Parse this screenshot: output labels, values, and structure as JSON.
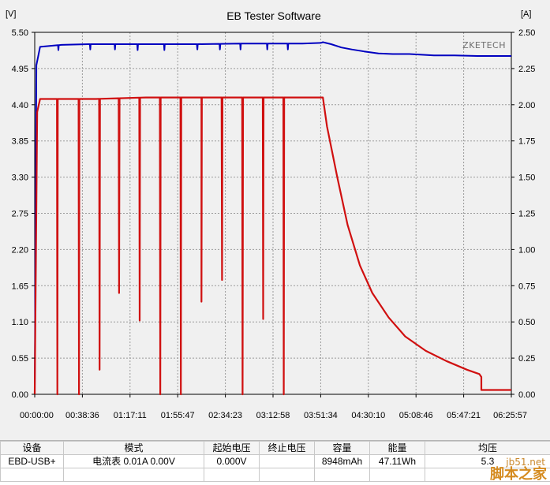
{
  "title": "EB Tester Software",
  "watermark": "ZKETECH",
  "chart_data": {
    "type": "line",
    "title": "EB Tester Software",
    "left_unit": "[V]",
    "right_unit": "[A]",
    "left_ylim": [
      0,
      5.5
    ],
    "right_ylim": [
      0,
      2.5
    ],
    "left_ticks": [
      "0.00",
      "0.55",
      "1.10",
      "1.65",
      "2.20",
      "2.75",
      "3.30",
      "3.85",
      "4.40",
      "4.95",
      "5.50"
    ],
    "right_ticks": [
      "0.00",
      "0.25",
      "0.50",
      "0.75",
      "1.00",
      "1.25",
      "1.50",
      "1.75",
      "2.00",
      "2.25",
      "2.50"
    ],
    "x_ticks": [
      "00:00:00",
      "00:38:36",
      "01:17:11",
      "01:55:47",
      "02:34:23",
      "03:12:58",
      "03:51:34",
      "04:30:10",
      "05:08:46",
      "05:47:21",
      "06:25:57"
    ],
    "x_total_seconds": 23157,
    "grid": true,
    "series": [
      {
        "axis": "left",
        "color": "#0000c0",
        "points": [
          [
            0,
            0
          ],
          [
            80,
            5.0
          ],
          [
            260,
            5.28
          ],
          [
            1300,
            5.31
          ],
          [
            2600,
            5.32
          ],
          [
            5200,
            5.32
          ],
          [
            7800,
            5.32
          ],
          [
            10400,
            5.33
          ],
          [
            13000,
            5.33
          ],
          [
            13900,
            5.34
          ],
          [
            14000,
            5.35
          ],
          [
            14400,
            5.32
          ],
          [
            14900,
            5.27
          ],
          [
            15400,
            5.24
          ],
          [
            16000,
            5.21
          ],
          [
            16700,
            5.18
          ],
          [
            17400,
            5.17
          ],
          [
            18200,
            5.17
          ],
          [
            18800,
            5.16
          ],
          [
            19400,
            5.15
          ],
          [
            20400,
            5.15
          ],
          [
            21500,
            5.14
          ],
          [
            23157,
            5.14
          ]
        ],
        "dips": [
          [
            1150,
            5.23
          ],
          [
            2700,
            5.24
          ],
          [
            3900,
            5.24
          ],
          [
            5000,
            5.23
          ],
          [
            6300,
            5.23
          ],
          [
            7900,
            5.24
          ],
          [
            9000,
            5.24
          ],
          [
            10000,
            5.24
          ],
          [
            11300,
            5.24
          ],
          [
            12300,
            5.24
          ]
        ]
      },
      {
        "axis": "right",
        "color": "#d01010",
        "points": [
          [
            0,
            0
          ],
          [
            120,
            1.95
          ],
          [
            260,
            2.04
          ],
          [
            3000,
            2.04
          ],
          [
            5400,
            2.05
          ],
          [
            8100,
            2.05
          ],
          [
            10800,
            2.05
          ],
          [
            14000,
            2.05
          ],
          [
            14200,
            1.85
          ],
          [
            14700,
            1.5
          ],
          [
            15200,
            1.17
          ],
          [
            15800,
            0.89
          ],
          [
            16400,
            0.7
          ],
          [
            17200,
            0.53
          ],
          [
            18000,
            0.4
          ],
          [
            19000,
            0.3
          ],
          [
            20000,
            0.23
          ],
          [
            21000,
            0.17
          ],
          [
            21600,
            0.14
          ],
          [
            21700,
            0.12
          ],
          [
            21700,
            0.03
          ],
          [
            23157,
            0.03
          ]
        ],
        "dips": [
          [
            1100,
            0.0
          ],
          [
            2150,
            0.0
          ],
          [
            3150,
            0.17
          ],
          [
            4100,
            0.7
          ],
          [
            5100,
            0.51
          ],
          [
            6100,
            0.0
          ],
          [
            7100,
            0.0
          ],
          [
            8100,
            0.64
          ],
          [
            9100,
            0.79
          ],
          [
            10100,
            0.0
          ],
          [
            11100,
            0.52
          ],
          [
            12100,
            0.0
          ]
        ]
      }
    ]
  },
  "table": {
    "headers": [
      "设备",
      "模式",
      "起始电压",
      "终止电压",
      "容量",
      "能量",
      "均压"
    ],
    "row": [
      "EBD-USB+",
      "电流表 0.01A 0.00V",
      "0.000V",
      "",
      "8948mAh",
      "47.11Wh",
      "5.3"
    ]
  },
  "site_watermark": {
    "site": "jb51.net",
    "name": "脚本之家"
  }
}
